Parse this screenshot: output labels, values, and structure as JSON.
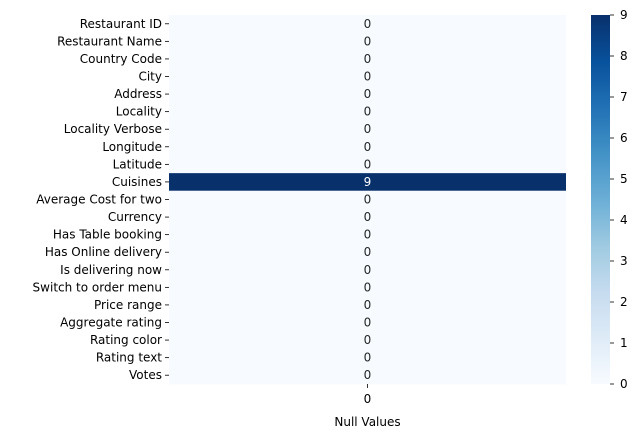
{
  "chart_data": {
    "type": "heatmap",
    "title": "",
    "xlabel": "Null Values",
    "ylabel": "",
    "x_categories": [
      "0"
    ],
    "y_categories": [
      "Restaurant ID",
      "Restaurant Name",
      "Country Code",
      "City",
      "Address",
      "Locality",
      "Locality Verbose",
      "Longitude",
      "Latitude",
      "Cuisines",
      "Average Cost for two",
      "Currency",
      "Has Table booking",
      "Has Online delivery",
      "Is delivering now",
      "Switch to order menu",
      "Price range",
      "Aggregate rating",
      "Rating color",
      "Rating text",
      "Votes"
    ],
    "values": [
      0,
      0,
      0,
      0,
      0,
      0,
      0,
      0,
      0,
      9,
      0,
      0,
      0,
      0,
      0,
      0,
      0,
      0,
      0,
      0,
      0
    ],
    "annotations": true,
    "colormap": "Blues",
    "color_low": "#f7fbff",
    "color_high": "#08306b",
    "colorbar": {
      "range": [
        0,
        9
      ],
      "ticks": [
        "0",
        "1",
        "2",
        "3",
        "4",
        "5",
        "6",
        "7",
        "8",
        "9"
      ]
    }
  }
}
